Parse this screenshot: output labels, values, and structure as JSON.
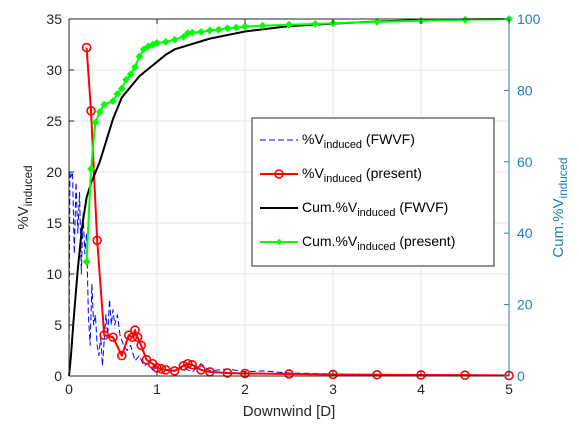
{
  "chart_data": {
    "type": "line",
    "title": "",
    "xlabel": "Downwind [D]",
    "ylabel_left": {
      "base": "%V",
      "sub": "induced"
    },
    "ylabel_right": {
      "base": "Cum.%V",
      "sub": "induced"
    },
    "xlim": [
      0,
      5
    ],
    "ylim_left": [
      0,
      35
    ],
    "ylim_right": [
      0,
      100
    ],
    "x_ticks": [
      "0",
      "1",
      "2",
      "3",
      "4",
      "5"
    ],
    "y_left_ticks": [
      "0",
      "5",
      "10",
      "15",
      "20",
      "25",
      "30",
      "35"
    ],
    "y_right_ticks": [
      "0",
      "20",
      "40",
      "60",
      "80",
      "100"
    ],
    "grid": true,
    "legend_position": "center-right",
    "series": [
      {
        "name": "%Vinduced (FWVF)",
        "legend_label": {
          "base": "%V",
          "sub": "induced",
          "suffix": " (FWVF)"
        },
        "axis": "left",
        "color": "#0000ff",
        "style": "dashed",
        "marker": "none",
        "x": [
          0.0,
          0.01,
          0.02,
          0.04,
          0.06,
          0.08,
          0.1,
          0.12,
          0.14,
          0.16,
          0.18,
          0.2,
          0.22,
          0.24,
          0.26,
          0.28,
          0.3,
          0.32,
          0.34,
          0.36,
          0.38,
          0.4,
          0.42,
          0.44,
          0.46,
          0.48,
          0.5,
          0.52,
          0.55,
          0.58,
          0.62,
          0.66,
          0.7,
          0.75,
          0.8,
          0.85,
          0.9,
          0.95,
          1.0,
          1.1,
          1.2,
          1.3,
          1.4,
          1.5,
          1.6,
          1.8,
          2.0,
          2.2,
          2.5,
          3.0,
          3.5,
          4.0,
          4.5,
          5.0
        ],
        "y": [
          0,
          20,
          19.5,
          20,
          12,
          19,
          14,
          18,
          10,
          16,
          12,
          14,
          6,
          3,
          9,
          5,
          6,
          3,
          2,
          4,
          1,
          3.5,
          6,
          4,
          7.5,
          5,
          6.5,
          5,
          6,
          4,
          3,
          2.5,
          3,
          1.5,
          2,
          1,
          1.2,
          0.6,
          0.8,
          0.6,
          0.5,
          0.8,
          0.4,
          1.2,
          0.5,
          0.7,
          0.4,
          0.5,
          0.3,
          0.2,
          0.15,
          0.1,
          0.1,
          0.05
        ]
      },
      {
        "name": "%Vinduced (present)",
        "legend_label": {
          "base": "%V",
          "sub": "induced",
          "suffix": " (present)"
        },
        "axis": "left",
        "color": "#ff0000",
        "style": "solid",
        "marker": "circle",
        "x": [
          0.2,
          0.25,
          0.32,
          0.4,
          0.5,
          0.6,
          0.68,
          0.72,
          0.75,
          0.78,
          0.82,
          0.88,
          0.95,
          1.0,
          1.05,
          1.1,
          1.2,
          1.3,
          1.35,
          1.4,
          1.5,
          1.6,
          1.8,
          2.0,
          2.5,
          3.0,
          3.5,
          4.0,
          4.5,
          5.0
        ],
        "y": [
          32.2,
          26,
          13.3,
          4,
          3.8,
          2,
          4,
          3.8,
          4.5,
          3.8,
          3,
          1.6,
          1.2,
          0.8,
          0.7,
          0.6,
          0.5,
          1.0,
          1.2,
          1.1,
          0.6,
          0.4,
          0.3,
          0.25,
          0.2,
          0.15,
          0.12,
          0.1,
          0.08,
          0.05
        ]
      },
      {
        "name": "Cum.%Vinduced (FWVF)",
        "legend_label": {
          "base": "Cum.%V",
          "sub": "induced",
          "suffix": " (FWVF)"
        },
        "axis": "right",
        "color": "#000000",
        "style": "solid",
        "marker": "none",
        "x": [
          0.0,
          0.02,
          0.05,
          0.08,
          0.1,
          0.15,
          0.2,
          0.25,
          0.3,
          0.35,
          0.4,
          0.5,
          0.6,
          0.7,
          0.8,
          0.9,
          1.0,
          1.1,
          1.2,
          1.4,
          1.6,
          1.8,
          2.0,
          2.5,
          3.0,
          3.5,
          4.0,
          4.5,
          5.0
        ],
        "y": [
          0,
          5,
          15,
          24,
          30,
          42,
          50,
          54,
          57,
          60,
          64,
          72,
          78,
          81,
          84,
          86,
          88,
          90,
          91.5,
          93,
          94.5,
          95.5,
          96.5,
          98,
          98.7,
          99.3,
          99.7,
          99.9,
          100
        ]
      },
      {
        "name": "Cum.%Vinduced (present)",
        "legend_label": {
          "base": "Cum.%V",
          "sub": "induced",
          "suffix": " (present)"
        },
        "axis": "right",
        "color": "#00ff00",
        "style": "solid",
        "marker": "diamond",
        "x": [
          0.2,
          0.25,
          0.3,
          0.35,
          0.4,
          0.5,
          0.55,
          0.6,
          0.65,
          0.7,
          0.75,
          0.8,
          0.85,
          0.9,
          0.95,
          1.0,
          1.1,
          1.2,
          1.3,
          1.35,
          1.4,
          1.5,
          1.6,
          1.7,
          1.8,
          1.9,
          2.0,
          2.2,
          2.5,
          2.8,
          3.0,
          3.5,
          4.0,
          4.5,
          5.0
        ],
        "y": [
          32,
          58,
          71,
          74,
          76,
          77,
          79,
          80.5,
          83,
          84.5,
          86.5,
          89.5,
          91.5,
          92.3,
          92.8,
          93.3,
          93.6,
          94.2,
          95,
          96,
          96.2,
          96.4,
          96.8,
          97,
          97.4,
          97.6,
          97.9,
          98.1,
          98.4,
          98.6,
          98.8,
          99.2,
          99.5,
          99.8,
          100
        ]
      }
    ],
    "colors": {
      "left_axis": "#262626",
      "right_axis": "#1f7fba",
      "grid": "#e5e5e5"
    }
  }
}
